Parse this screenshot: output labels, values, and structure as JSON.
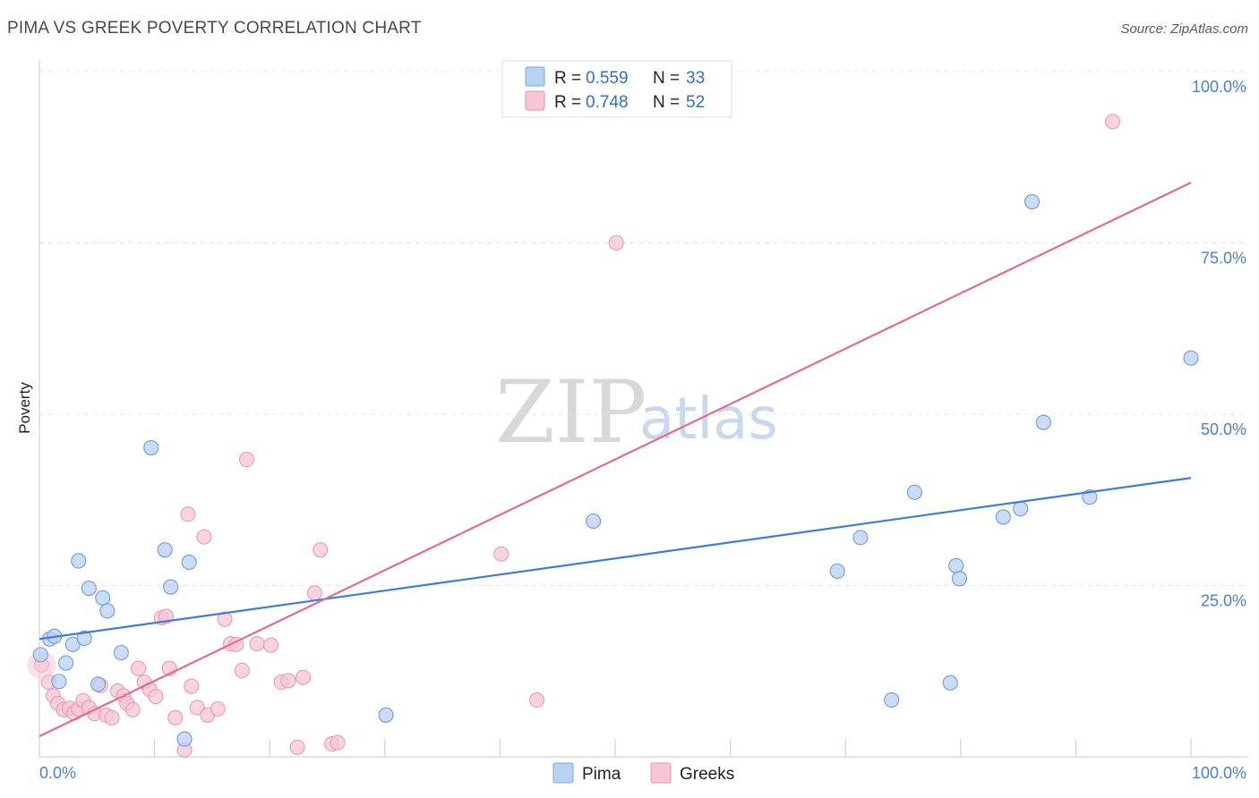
{
  "title": "PIMA VS GREEK POVERTY CORRELATION CHART",
  "source": "Source: ZipAtlas.com",
  "watermark": {
    "zip": "ZIP",
    "atlas": "atlas"
  },
  "colors": {
    "pima": "#3b7dd8",
    "greeks": "#e26a95",
    "pima_fill": "#b9d2f3",
    "greeks_fill": "#f7c6d6"
  },
  "legend": {
    "r_label": "R =",
    "n_label": "N =",
    "entries": [
      {
        "r": "0.559",
        "n": "33"
      },
      {
        "r": "0.748",
        "n": "52"
      }
    ]
  },
  "bottom_legend": [
    "Pima",
    "Greeks"
  ],
  "chart_data": {
    "type": "scatter",
    "ylabel": "Poverty",
    "xlim": [
      0,
      100
    ],
    "ylim": [
      0,
      100
    ],
    "x_tick_labels": [
      "0.0%",
      "100.0%"
    ],
    "y_tick_labels": [
      "25.0%",
      "50.0%",
      "75.0%",
      "100.0%"
    ],
    "y_ticks": [
      25,
      50,
      75,
      100
    ],
    "grid": true,
    "series": [
      {
        "name": "Pima",
        "trend": [
          [
            0,
            17.2
          ],
          [
            100,
            40.7
          ]
        ],
        "points": [
          [
            0.1,
            14.9
          ],
          [
            0.9,
            17.2
          ],
          [
            1.3,
            17.6
          ],
          [
            1.7,
            11.0
          ],
          [
            2.3,
            13.7
          ],
          [
            2.9,
            16.4
          ],
          [
            3.4,
            28.6
          ],
          [
            3.9,
            17.3
          ],
          [
            4.3,
            24.6
          ],
          [
            5.1,
            10.6
          ],
          [
            5.5,
            23.2
          ],
          [
            5.9,
            21.3
          ],
          [
            7.1,
            15.2
          ],
          [
            9.7,
            45.1
          ],
          [
            10.9,
            30.2
          ],
          [
            11.4,
            24.8
          ],
          [
            12.6,
            2.6
          ],
          [
            13.0,
            28.4
          ],
          [
            30.1,
            6.1
          ],
          [
            48.1,
            34.4
          ],
          [
            69.3,
            27.1
          ],
          [
            71.3,
            32.0
          ],
          [
            74.0,
            8.3
          ],
          [
            76.0,
            38.6
          ],
          [
            79.1,
            10.8
          ],
          [
            79.6,
            27.9
          ],
          [
            79.9,
            26.0
          ],
          [
            83.7,
            35.0
          ],
          [
            85.2,
            36.2
          ],
          [
            86.2,
            81.0
          ],
          [
            87.2,
            48.8
          ],
          [
            91.2,
            37.9
          ],
          [
            100.0,
            58.2
          ]
        ]
      },
      {
        "name": "Greeks",
        "trend": [
          [
            0,
            3.0
          ],
          [
            100,
            83.8
          ]
        ],
        "points": [
          [
            0.2,
            13.4
          ],
          [
            0.8,
            10.9
          ],
          [
            1.2,
            8.9
          ],
          [
            1.6,
            7.8
          ],
          [
            2.1,
            6.9
          ],
          [
            2.6,
            7.1
          ],
          [
            3.0,
            6.4
          ],
          [
            3.4,
            7.0
          ],
          [
            3.8,
            8.2
          ],
          [
            4.3,
            7.2
          ],
          [
            4.8,
            6.3
          ],
          [
            5.3,
            10.4
          ],
          [
            5.8,
            6.1
          ],
          [
            6.3,
            5.7
          ],
          [
            6.8,
            9.6
          ],
          [
            7.3,
            8.9
          ],
          [
            7.6,
            7.8
          ],
          [
            8.1,
            6.9
          ],
          [
            8.6,
            12.9
          ],
          [
            9.1,
            10.9
          ],
          [
            9.6,
            9.8
          ],
          [
            10.1,
            8.8
          ],
          [
            10.6,
            20.3
          ],
          [
            11.0,
            20.5
          ],
          [
            11.3,
            12.9
          ],
          [
            11.8,
            5.7
          ],
          [
            12.6,
            1.0
          ],
          [
            12.9,
            35.4
          ],
          [
            13.2,
            10.3
          ],
          [
            13.7,
            7.2
          ],
          [
            14.3,
            32.1
          ],
          [
            14.6,
            6.1
          ],
          [
            15.5,
            7.0
          ],
          [
            16.1,
            20.1
          ],
          [
            16.6,
            16.5
          ],
          [
            17.1,
            16.4
          ],
          [
            17.6,
            12.6
          ],
          [
            18.0,
            43.4
          ],
          [
            18.9,
            16.5
          ],
          [
            20.1,
            16.3
          ],
          [
            21.0,
            10.9
          ],
          [
            21.6,
            11.1
          ],
          [
            22.4,
            1.4
          ],
          [
            22.9,
            11.6
          ],
          [
            23.9,
            23.9
          ],
          [
            24.4,
            30.2
          ],
          [
            25.4,
            1.9
          ],
          [
            25.9,
            2.1
          ],
          [
            40.1,
            29.6
          ],
          [
            43.2,
            8.3
          ],
          [
            50.1,
            75.0
          ],
          [
            93.2,
            92.7
          ]
        ]
      }
    ]
  }
}
